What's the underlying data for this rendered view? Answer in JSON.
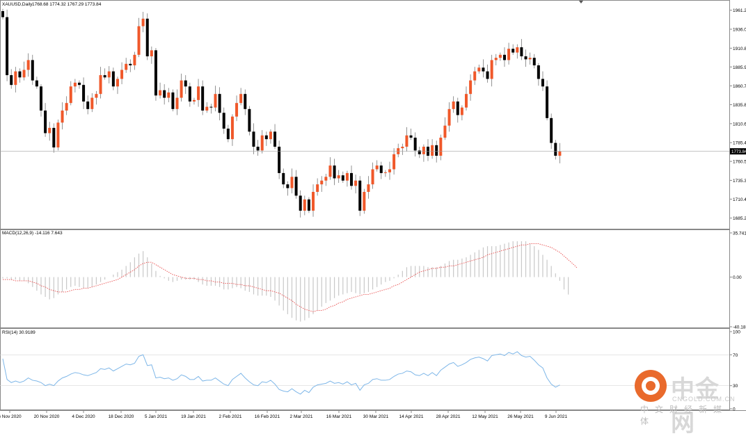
{
  "window": {
    "title": "XAUUSD,Daily",
    "ohlc": "1768.68 1774.32 1767.29 1773.84",
    "current_price_label": "1773.84"
  },
  "colors": {
    "up": "#f0582a",
    "down": "#000000",
    "macd_hist": "#c8c8c8",
    "macd_signal": "#e84a4a",
    "rsi_line": "#7db6e8",
    "grid_line": "#d8d8d8",
    "price_line": "#a0a0a0"
  },
  "x_axis_labels": [
    "6 Nov 2020",
    "20 Nov 2020",
    "4 Dec 2020",
    "18 Dec 2020",
    "5 Jan 2021",
    "19 Jan 2021",
    "2 Feb 2021",
    "16 Feb 2021",
    "2 Mar 2021",
    "16 Mar 2021",
    "30 Mar 2021",
    "14 Apr 2021",
    "28 Apr 2021",
    "12 May 2021",
    "26 May 2021",
    "9 Jun 2021"
  ],
  "chart_data": [
    {
      "type": "candlestick",
      "symbol": "XAUUSD",
      "timeframe": "Daily",
      "ylim": [
        1672,
        1972
      ],
      "y_ticks": [
        "1961.20",
        "1936.00",
        "1910.80",
        "1885.90",
        "1860.70",
        "1835.80",
        "1810.60",
        "1785.40",
        "1760.50",
        "1735.30",
        "1710.40",
        "1685.20"
      ],
      "last_price": "1773.84",
      "closes": [
        1952,
        1875,
        1862,
        1880,
        1872,
        1882,
        1895,
        1868,
        1860,
        1828,
        1798,
        1805,
        1779,
        1812,
        1828,
        1838,
        1860,
        1865,
        1862,
        1840,
        1830,
        1845,
        1850,
        1875,
        1872,
        1880,
        1860,
        1870,
        1882,
        1890,
        1888,
        1902,
        1940,
        1950,
        1900,
        1908,
        1848,
        1855,
        1845,
        1852,
        1830,
        1845,
        1868,
        1860,
        1840,
        1842,
        1860,
        1828,
        1833,
        1832,
        1850,
        1825,
        1804,
        1790,
        1820,
        1838,
        1850,
        1830,
        1800,
        1780,
        1775,
        1795,
        1790,
        1800,
        1780,
        1745,
        1730,
        1725,
        1740,
        1715,
        1695,
        1710,
        1695,
        1720,
        1730,
        1735,
        1740,
        1755,
        1738,
        1742,
        1735,
        1745,
        1728,
        1735,
        1695,
        1720,
        1730,
        1750,
        1755,
        1745,
        1746,
        1750,
        1770,
        1778,
        1780,
        1795,
        1792,
        1775,
        1770,
        1780,
        1768,
        1782,
        1768,
        1792,
        1808,
        1830,
        1840,
        1822,
        1832,
        1850,
        1868,
        1880,
        1885,
        1880,
        1870,
        1895,
        1898,
        1902,
        1895,
        1910,
        1905,
        1912,
        1900,
        1896,
        1898,
        1888,
        1870,
        1860,
        1818,
        1785,
        1768,
        1773.84
      ]
    },
    {
      "type": "bar",
      "title": "MACD(12,26,9) -14.116 7.643",
      "ylim": [
        -40.18,
        35.741
      ],
      "y_ticks": [
        "35.741",
        "0.00",
        "-40.18"
      ],
      "series": [
        {
          "values": [
            -1,
            -1,
            -2,
            -2,
            -3,
            -3,
            -5,
            -8,
            -11,
            -14,
            -16,
            -18,
            -17,
            -14,
            -12,
            -10,
            -8,
            -7,
            -8,
            -9,
            -9,
            -8,
            -6,
            -4,
            -2,
            0,
            2,
            4,
            6,
            9,
            12,
            16,
            19,
            21,
            16,
            11,
            5,
            1,
            -1,
            -3,
            -4,
            -3,
            -2,
            -2,
            -2,
            -2,
            -4,
            -6,
            -7,
            -7,
            -7,
            -8,
            -10,
            -10,
            -9,
            -8,
            -9,
            -11,
            -12,
            -14,
            -15,
            -15,
            -15,
            -16,
            -19,
            -23,
            -27,
            -30,
            -33,
            -35,
            -36,
            -35,
            -33,
            -30,
            -27,
            -24,
            -21,
            -19,
            -17,
            -15,
            -14,
            -13,
            -12,
            -13,
            -14,
            -13,
            -12,
            -10,
            -8,
            -6,
            -4,
            -3,
            -1,
            2,
            5,
            8,
            9,
            9,
            9,
            9,
            8,
            8,
            8,
            9,
            11,
            13,
            14,
            14,
            15,
            16,
            18,
            20,
            22,
            24,
            25,
            25,
            25,
            26,
            27,
            28,
            29,
            29,
            29,
            29,
            27,
            25,
            22,
            18,
            14,
            9,
            3,
            -3,
            -10,
            -14.116
          ]
        },
        {
          "values": [
            -2,
            -2,
            -2,
            -3,
            -3,
            -3,
            -3,
            -4,
            -5,
            -7,
            -8,
            -10,
            -11,
            -12,
            -12,
            -12,
            -11,
            -10,
            -10,
            -9,
            -9,
            -8,
            -7,
            -6,
            -5,
            -4,
            -3,
            -2,
            0,
            2,
            4,
            6,
            9,
            11,
            12,
            12,
            10,
            8,
            6,
            4,
            2,
            1,
            0,
            -1,
            -1,
            -1,
            -2,
            -2,
            -3,
            -3,
            -4,
            -4,
            -5,
            -5,
            -5,
            -6,
            -6,
            -7,
            -7,
            -8,
            -9,
            -10,
            -11,
            -11,
            -12,
            -13,
            -15,
            -17,
            -19,
            -22,
            -24,
            -26,
            -27,
            -28,
            -27,
            -27,
            -26,
            -24,
            -23,
            -21,
            -20,
            -18,
            -17,
            -16,
            -15,
            -14,
            -14,
            -13,
            -12,
            -11,
            -10,
            -9,
            -7,
            -6,
            -4,
            -2,
            0,
            2,
            4,
            5,
            6,
            7,
            7,
            8,
            8,
            9,
            9,
            10,
            11,
            12,
            13,
            14,
            15,
            16,
            18,
            19,
            20,
            21,
            22,
            23,
            24,
            25,
            26,
            26,
            27,
            27,
            27,
            26,
            25,
            24,
            22,
            20,
            17,
            14,
            11,
            7.643
          ]
        }
      ]
    },
    {
      "type": "line",
      "title": "RSI(14) 30.9189",
      "ylim": [
        0,
        100
      ],
      "y_ticks": [
        "100",
        "70",
        "30",
        "0"
      ],
      "series": [
        {
          "values": [
            65,
            38,
            34,
            36,
            34,
            36,
            40,
            37,
            36,
            34,
            30,
            32,
            30,
            36,
            40,
            42,
            45,
            47,
            46,
            44,
            43,
            45,
            47,
            52,
            51,
            53,
            49,
            52,
            55,
            58,
            57,
            59,
            68,
            70,
            56,
            57,
            40,
            41,
            39,
            40,
            37,
            39,
            44,
            42,
            38,
            38,
            42,
            36,
            37,
            37,
            40,
            36,
            32,
            30,
            38,
            42,
            46,
            40,
            35,
            31,
            30,
            35,
            34,
            37,
            32,
            25,
            23,
            22,
            26,
            22,
            19,
            24,
            21,
            28,
            31,
            32,
            33,
            36,
            33,
            34,
            32,
            35,
            31,
            33,
            24,
            31,
            33,
            38,
            39,
            37,
            37,
            38,
            42,
            45,
            46,
            49,
            48,
            44,
            43,
            46,
            43,
            47,
            43,
            50,
            54,
            58,
            60,
            55,
            57,
            60,
            64,
            66,
            67,
            65,
            62,
            69,
            70,
            71,
            69,
            73,
            71,
            74,
            69,
            67,
            68,
            63,
            57,
            53,
            40,
            32,
            28,
            30.9189
          ]
        }
      ]
    }
  ],
  "watermark": {
    "title": "中金网",
    "domain": "CNGOLD.COM.CN",
    "slogan": "中文财经新媒体"
  }
}
